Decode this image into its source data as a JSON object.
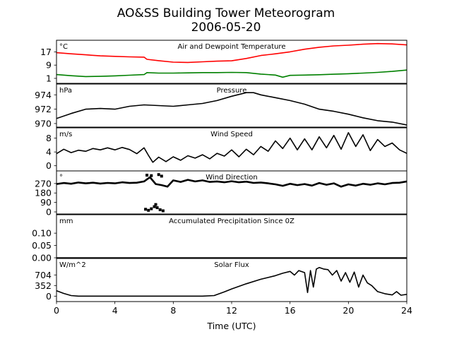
{
  "title_line1": "AO&SS Building Tower Meteorogram",
  "title_line2": "2006-05-20",
  "chart_data": {
    "type": "line",
    "xlabel": "Time (UTC)",
    "xlim": [
      0,
      24
    ],
    "xticks": [
      0,
      4,
      8,
      12,
      16,
      20,
      24
    ],
    "panels": [
      {
        "title": "Air and Dewpoint Temperature",
        "unit": "°C",
        "ylim": [
          -2,
          24
        ],
        "yticks": [
          1,
          9,
          17
        ],
        "series": [
          {
            "name": "",
            "color": "#ff0000",
            "x": [
              0,
              1,
              2,
              3,
              4,
              5,
              6,
              6.2,
              7,
              8,
              9,
              10,
              11,
              12,
              13,
              14,
              15,
              16,
              17,
              18,
              19,
              20,
              21,
              22,
              23,
              24
            ],
            "y": [
              16.5,
              15.8,
              15.2,
              14.6,
              14.3,
              14.0,
              13.8,
              12.5,
              11.7,
              10.8,
              10.6,
              11.0,
              11.4,
              11.6,
              13.0,
              14.8,
              15.8,
              17.0,
              18.6,
              19.8,
              20.6,
              21.0,
              21.6,
              22.0,
              21.8,
              21.2
            ]
          },
          {
            "name": "",
            "color": "#008000",
            "x": [
              0,
              1,
              2,
              3,
              4,
              5,
              6,
              6.2,
              7,
              8,
              9,
              10,
              11,
              12,
              13,
              14,
              15,
              15.5,
              16,
              17,
              18,
              19,
              20,
              21,
              22,
              23,
              24
            ],
            "y": [
              3.3,
              2.6,
              2.1,
              2.2,
              2.5,
              2.9,
              3.3,
              4.5,
              4.2,
              4.2,
              4.3,
              4.5,
              4.5,
              4.6,
              4.5,
              3.6,
              3.0,
              1.7,
              2.8,
              3.0,
              3.2,
              3.5,
              3.8,
              4.2,
              4.6,
              5.2,
              6.0
            ]
          }
        ]
      },
      {
        "title": "Pressure",
        "unit": "hPa",
        "ylim": [
          969.5,
          975.5
        ],
        "yticks": [
          970,
          972,
          974
        ],
        "series": [
          {
            "name": "",
            "color": "#000000",
            "x": [
              0,
              1,
              2,
              3,
              4,
              5,
              6,
              7,
              8,
              9,
              10,
              11,
              12,
              13,
              13.5,
              14,
              15,
              16,
              17,
              18,
              19,
              20,
              21,
              22,
              23,
              24
            ],
            "y": [
              970.7,
              971.4,
              972.0,
              972.1,
              972.0,
              972.4,
              972.6,
              972.5,
              972.4,
              972.6,
              972.8,
              973.2,
              973.8,
              974.3,
              974.3,
              974.0,
              973.6,
              973.2,
              972.7,
              972.0,
              971.7,
              971.3,
              970.8,
              970.4,
              970.2,
              969.8
            ]
          }
        ]
      },
      {
        "title": "Wind Speed",
        "unit": "m/s",
        "ylim": [
          -1.5,
          11
        ],
        "yticks": [
          0,
          4,
          8
        ],
        "series": [
          {
            "name": "",
            "color": "#000000",
            "x": [
              0,
              0.5,
              1,
              1.5,
              2,
              2.5,
              3,
              3.5,
              4,
              4.5,
              5,
              5.5,
              6,
              6.3,
              6.6,
              7,
              7.5,
              8,
              8.5,
              9,
              9.5,
              10,
              10.5,
              11,
              11.5,
              12,
              12.5,
              13,
              13.5,
              14,
              14.5,
              15,
              15.5,
              16,
              16.5,
              17,
              17.5,
              18,
              18.5,
              19,
              19.5,
              20,
              20.5,
              21,
              21.5,
              22,
              22.5,
              23,
              23.5,
              24
            ],
            "y": [
              3.5,
              4.8,
              3.8,
              4.5,
              4.2,
              5.0,
              4.6,
              5.2,
              4.6,
              5.3,
              4.7,
              3.5,
              5.2,
              3.0,
              1.0,
              2.5,
              1.2,
              2.6,
              1.6,
              2.9,
              2.2,
              3.2,
              2.0,
              3.6,
              2.8,
              4.6,
              2.6,
              4.8,
              3.2,
              5.6,
              4.2,
              7.2,
              5.0,
              8.0,
              4.6,
              7.8,
              4.6,
              8.4,
              5.2,
              8.8,
              4.8,
              9.6,
              5.6,
              9.0,
              4.4,
              7.6,
              5.6,
              6.6,
              4.6,
              3.6
            ]
          }
        ]
      },
      {
        "title": "Wind Direction",
        "unit": "°",
        "ylim": [
          -20,
          390
        ],
        "yticks": [
          0,
          90,
          180,
          270
        ],
        "series": [
          {
            "name": "",
            "color": "#000000",
            "x": [
              0,
              0.5,
              1,
              1.5,
              2,
              2.5,
              3,
              3.5,
              4,
              4.5,
              5,
              5.5,
              6,
              6.4,
              6.8,
              7.2,
              7.6,
              8,
              8.5,
              9,
              9.5,
              10,
              10.5,
              11,
              11.5,
              12,
              12.5,
              13,
              13.5,
              14,
              14.5,
              15,
              15.5,
              16,
              16.5,
              17,
              17.5,
              18,
              18.5,
              19,
              19.5,
              20,
              20.5,
              21,
              21.5,
              22,
              22.5,
              23,
              23.5,
              24
            ],
            "y": [
              265,
              275,
              268,
              280,
              272,
              278,
              270,
              276,
              272,
              282,
              275,
              278,
              290,
              330,
              265,
              255,
              240,
              300,
              285,
              305,
              290,
              300,
              285,
              290,
              282,
              292,
              282,
              288,
              276,
              280,
              272,
              262,
              248,
              268,
              255,
              265,
              250,
              275,
              258,
              272,
              240,
              262,
              250,
              268,
              258,
              272,
              262,
              275,
              278,
              290
            ]
          },
          {
            "name": "",
            "color": "#000000",
            "mode": "points",
            "x": [
              6.1,
              6.3,
              6.5,
              6.7,
              6.8,
              6.9,
              7.1,
              7.3,
              6.2,
              6.5,
              7.0,
              7.2
            ],
            "y": [
              25,
              15,
              30,
              50,
              70,
              40,
              20,
              10,
              350,
              345,
              355,
              340
            ]
          }
        ]
      },
      {
        "title": "Accumulated Precipitation Since 0Z",
        "unit": "mm",
        "ylim": [
          0,
          0.175
        ],
        "yticks": [
          0.0,
          0.05,
          0.1
        ],
        "yformat": 2,
        "series": [
          {
            "name": "",
            "color": "#000000",
            "x": [
              0,
              24
            ],
            "y": [
              0,
              0
            ]
          }
        ]
      },
      {
        "title": "Solar Flux",
        "unit": "W/m^2",
        "ylim": [
          -180,
          1250
        ],
        "yticks": [
          0,
          352,
          704
        ],
        "series": [
          {
            "name": "",
            "color": "#000000",
            "x": [
              0,
              0.5,
              1,
              1.5,
              2,
              3,
              4,
              5,
              6,
              7,
              8,
              9,
              10,
              10.8,
              11.5,
              12,
              13,
              14,
              15,
              15.5,
              16,
              16.3,
              16.6,
              17,
              17.2,
              17.4,
              17.6,
              17.8,
              18,
              18.3,
              18.6,
              18.9,
              19.2,
              19.5,
              19.8,
              20.1,
              20.4,
              20.7,
              21,
              21.3,
              21.6,
              22,
              22.5,
              23,
              23.3,
              23.6,
              24
            ],
            "y": [
              180,
              90,
              20,
              0,
              0,
              0,
              0,
              0,
              0,
              0,
              0,
              0,
              0,
              20,
              140,
              240,
              410,
              560,
              680,
              760,
              820,
              700,
              850,
              780,
              120,
              850,
              300,
              900,
              950,
              900,
              880,
              700,
              850,
              500,
              780,
              460,
              800,
              300,
              700,
              440,
              350,
              150,
              80,
              40,
              150,
              30,
              60
            ]
          }
        ]
      }
    ]
  }
}
